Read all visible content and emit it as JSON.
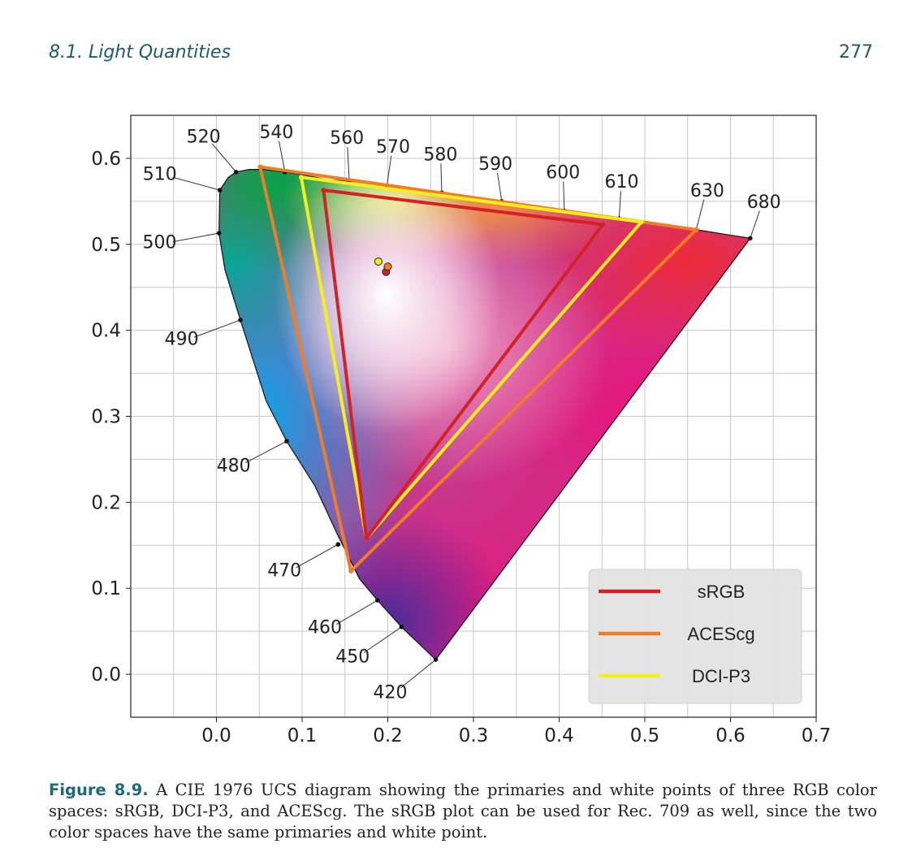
{
  "header": {
    "section": "8.1.  Light Quantities",
    "page_number": "277"
  },
  "caption": {
    "label": "Figure 8.9.",
    "text": "A CIE 1976 UCS diagram showing the primaries and white points of three RGB color spaces: sRGB, DCI-P3, and ACEScg. The sRGB plot can be used for Rec. 709 as well, since the two color spaces have the same primaries and white point."
  },
  "chart_data": {
    "type": "scatter",
    "title": "",
    "xlabel": "",
    "ylabel": "",
    "xlim": [
      -0.1,
      0.7
    ],
    "ylim": [
      -0.05,
      0.65
    ],
    "grid": true,
    "x_ticks": [
      0.0,
      0.1,
      0.2,
      0.3,
      0.4,
      0.5,
      0.6,
      0.7
    ],
    "x_tick_labels": [
      "0.0",
      "0.1",
      "0.2",
      "0.3",
      "0.4",
      "0.5",
      "0.6",
      "0.7"
    ],
    "y_ticks": [
      0.0,
      0.1,
      0.2,
      0.3,
      0.4,
      0.5,
      0.6
    ],
    "y_tick_labels": [
      "0.0",
      "0.1",
      "0.2",
      "0.3",
      "0.4",
      "0.5",
      "0.6"
    ],
    "spectral_locus": [
      [
        0.256,
        0.017
      ],
      [
        0.216,
        0.055
      ],
      [
        0.188,
        0.086
      ],
      [
        0.167,
        0.111
      ],
      [
        0.142,
        0.161
      ],
      [
        0.115,
        0.219
      ],
      [
        0.082,
        0.271
      ],
      [
        0.058,
        0.318
      ],
      [
        0.028,
        0.412
      ],
      [
        0.01,
        0.47
      ],
      [
        0.003,
        0.513
      ],
      [
        0.004,
        0.563
      ],
      [
        0.014,
        0.578
      ],
      [
        0.023,
        0.584
      ],
      [
        0.038,
        0.587
      ],
      [
        0.055,
        0.587
      ],
      [
        0.08,
        0.584
      ],
      [
        0.1,
        0.581
      ],
      [
        0.13,
        0.575
      ],
      [
        0.164,
        0.573
      ],
      [
        0.2,
        0.568
      ],
      [
        0.263,
        0.56
      ],
      [
        0.333,
        0.55
      ],
      [
        0.406,
        0.539
      ],
      [
        0.47,
        0.53
      ],
      [
        0.56,
        0.517
      ],
      [
        0.623,
        0.507
      ]
    ],
    "wavelength_marks": [
      {
        "nm": "420",
        "point": [
          0.256,
          0.017
        ],
        "label": [
          0.215,
          -0.016
        ]
      },
      {
        "nm": "450",
        "point": [
          0.216,
          0.055
        ],
        "label": [
          0.172,
          0.025
        ]
      },
      {
        "nm": "460",
        "point": [
          0.188,
          0.086
        ],
        "label": [
          0.14,
          0.058
        ]
      },
      {
        "nm": "470",
        "point": [
          0.142,
          0.151
        ],
        "label": [
          0.093,
          0.124
        ]
      },
      {
        "nm": "480",
        "point": [
          0.082,
          0.271
        ],
        "label": [
          0.034,
          0.246
        ]
      },
      {
        "nm": "490",
        "point": [
          0.028,
          0.412
        ],
        "label": [
          -0.026,
          0.392
        ]
      },
      {
        "nm": "500",
        "point": [
          0.003,
          0.513
        ],
        "label": [
          -0.051,
          0.503
        ]
      },
      {
        "nm": "510",
        "point": [
          0.004,
          0.563
        ],
        "label": [
          -0.051,
          0.578
        ]
      },
      {
        "nm": "520",
        "point": [
          0.023,
          0.584
        ],
        "label": [
          -0.005,
          0.617
        ]
      },
      {
        "nm": "540",
        "point": [
          0.08,
          0.584
        ],
        "label": [
          0.073,
          0.62
        ]
      },
      {
        "nm": "560",
        "point": [
          0.155,
          0.574
        ],
        "label": [
          0.153,
          0.613
        ]
      },
      {
        "nm": "570",
        "point": [
          0.199,
          0.568
        ],
        "label": [
          0.204,
          0.603
        ]
      },
      {
        "nm": "580",
        "point": [
          0.263,
          0.56
        ],
        "label": [
          0.262,
          0.594
        ]
      },
      {
        "nm": "590",
        "point": [
          0.333,
          0.55
        ],
        "label": [
          0.328,
          0.583
        ]
      },
      {
        "nm": "600",
        "point": [
          0.406,
          0.539
        ],
        "label": [
          0.405,
          0.573
        ]
      },
      {
        "nm": "610",
        "point": [
          0.47,
          0.53
        ],
        "label": [
          0.472,
          0.562
        ]
      },
      {
        "nm": "630",
        "point": [
          0.56,
          0.517
        ],
        "label": [
          0.569,
          0.552
        ]
      },
      {
        "nm": "680",
        "point": [
          0.623,
          0.507
        ],
        "label": [
          0.634,
          0.539
        ]
      }
    ],
    "series": [
      {
        "name": "sRGB",
        "color": "#d42128",
        "primaries": [
          [
            0.451,
            0.523
          ],
          [
            0.125,
            0.563
          ],
          [
            0.175,
            0.158
          ]
        ],
        "white_point": [
          0.198,
          0.468
        ]
      },
      {
        "name": "ACEScg",
        "color": "#f07c28",
        "primaries": [
          [
            0.56,
            0.517
          ],
          [
            0.051,
            0.59
          ],
          [
            0.157,
            0.12
          ]
        ],
        "white_point": [
          0.2,
          0.474
        ]
      },
      {
        "name": "DCI-P3",
        "color": "#f5ef1a",
        "primaries": [
          [
            0.496,
            0.526
          ],
          [
            0.099,
            0.578
          ],
          [
            0.175,
            0.158
          ]
        ],
        "white_point": [
          0.189,
          0.48
        ]
      }
    ],
    "legend_position": "lower-right"
  }
}
